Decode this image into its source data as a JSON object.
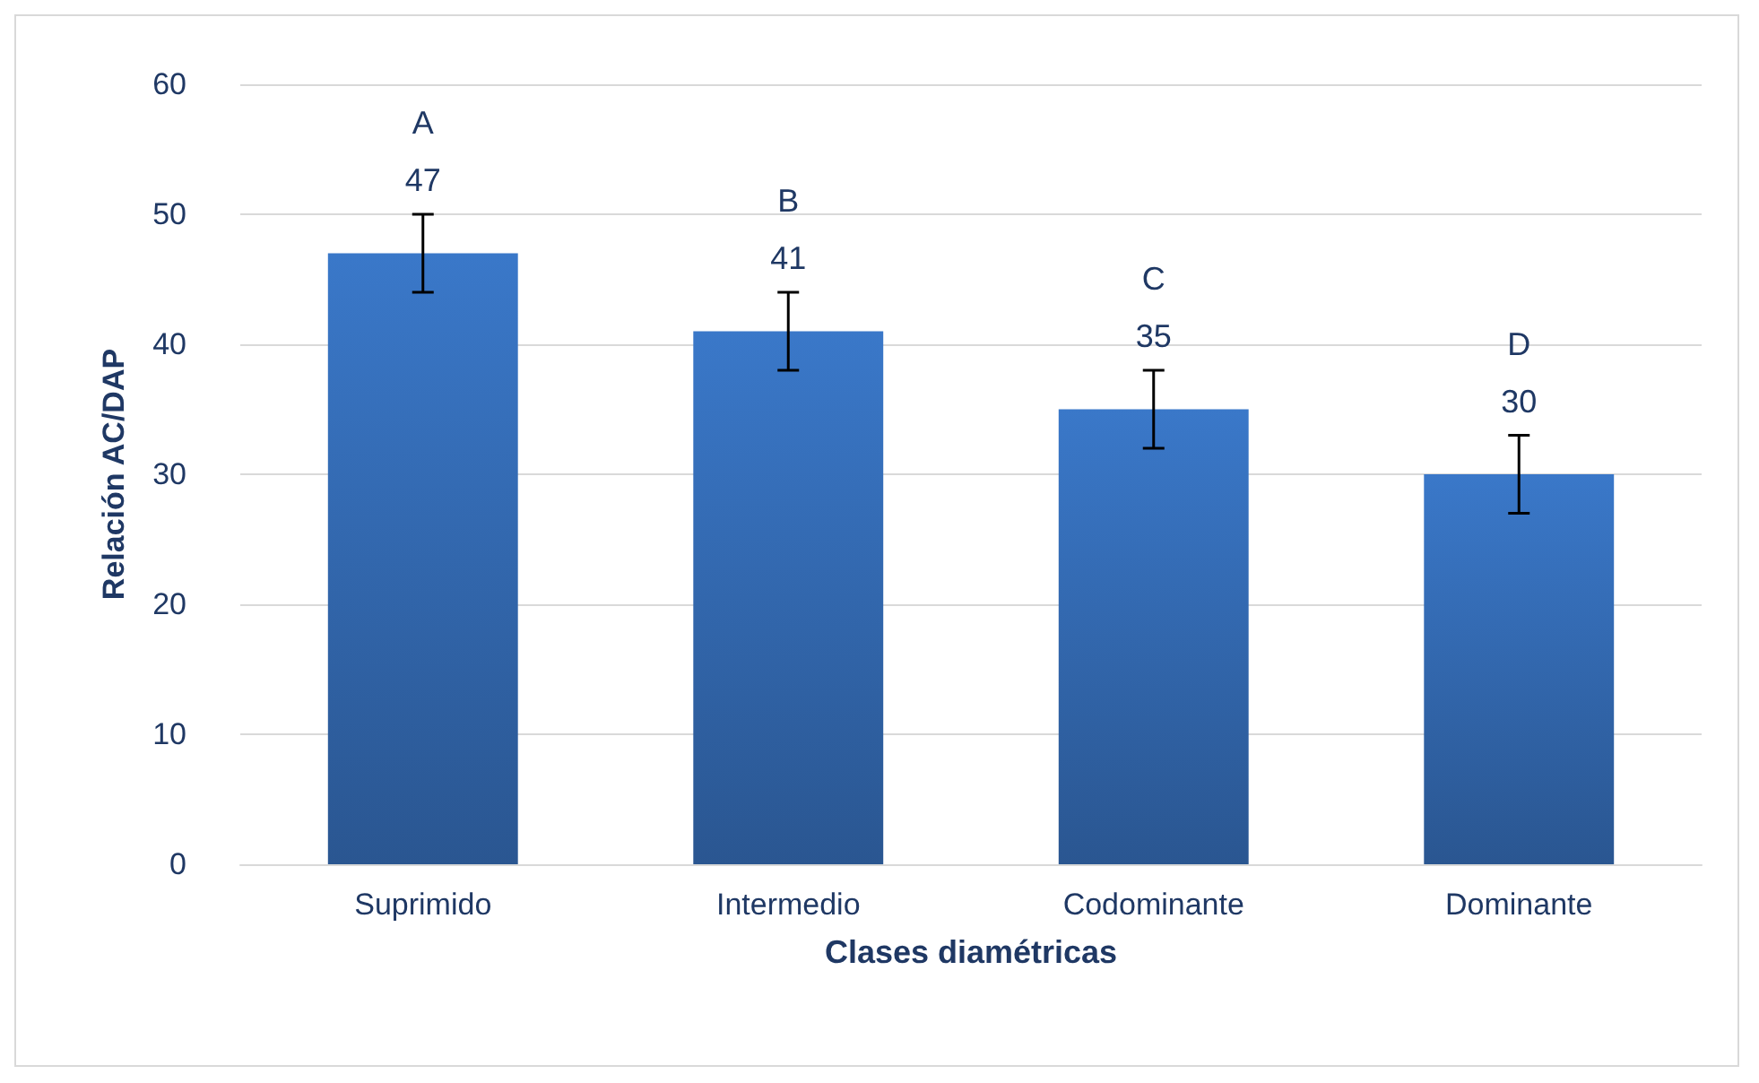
{
  "chart_data": {
    "type": "bar",
    "xlabel": "Clases diamétricas",
    "ylabel": "Relación AC/DAP",
    "categories": [
      "Suprimido",
      "Intermedio",
      "Codominante",
      "Dominante"
    ],
    "values": [
      47,
      41,
      35,
      30
    ],
    "errors": [
      3,
      3,
      3,
      3
    ],
    "color": "#3a78c9",
    "data_labels": true,
    "annotations": [
      "A",
      "B",
      "C",
      "D"
    ],
    "ylim": [
      0,
      60
    ],
    "yticks": [
      0,
      10,
      20,
      30,
      40,
      50,
      60
    ],
    "grid": "y"
  }
}
